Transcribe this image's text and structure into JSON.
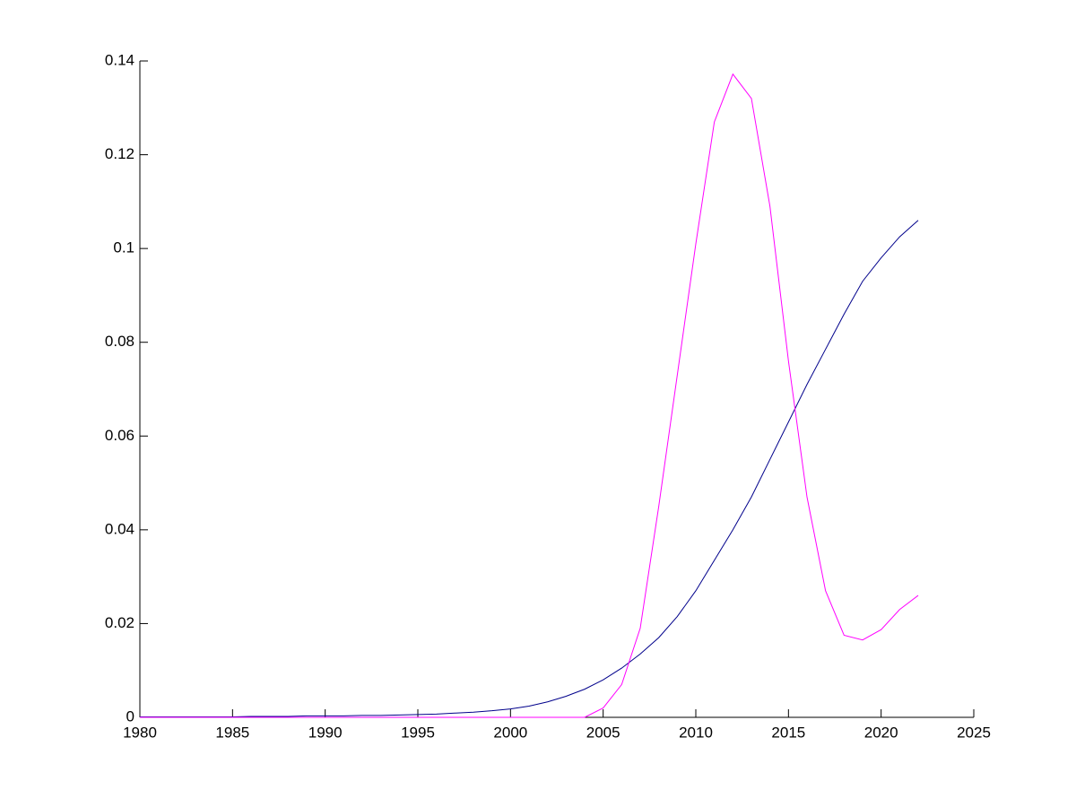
{
  "chart_data": {
    "type": "line",
    "x": [
      1980,
      1981,
      1982,
      1983,
      1984,
      1985,
      1986,
      1987,
      1988,
      1989,
      1990,
      1991,
      1992,
      1993,
      1994,
      1995,
      1996,
      1997,
      1998,
      1999,
      2000,
      2001,
      2002,
      2003,
      2004,
      2005,
      2006,
      2007,
      2008,
      2009,
      2010,
      2011,
      2012,
      2013,
      2014,
      2015,
      2016,
      2017,
      2018,
      2019,
      2020,
      2021,
      2022
    ],
    "series": [
      {
        "color": "#00008b",
        "values": [
          0.0001,
          0.0001,
          0.0001,
          0.0001,
          0.0001,
          0.0001,
          0.0002,
          0.0002,
          0.0002,
          0.0003,
          0.0003,
          0.0003,
          0.0004,
          0.0004,
          0.0005,
          0.0006,
          0.0007,
          0.0009,
          0.0011,
          0.0014,
          0.0018,
          0.0024,
          0.0033,
          0.0045,
          0.006,
          0.008,
          0.0105,
          0.0135,
          0.017,
          0.0215,
          0.027,
          0.0335,
          0.04,
          0.047,
          0.055,
          0.063,
          0.071,
          0.0785,
          0.086,
          0.093,
          0.098,
          0.1025,
          0.106
        ]
      },
      {
        "color": "#ff00ff",
        "values": [
          0,
          0,
          0,
          0,
          0,
          0,
          0,
          0,
          0,
          0,
          0,
          0,
          0,
          0,
          0,
          0,
          0,
          0,
          0,
          0,
          0,
          0,
          0,
          0,
          0,
          0.002,
          0.007,
          0.019,
          0.045,
          0.073,
          0.101,
          0.127,
          0.1372,
          0.132,
          0.109,
          0.076,
          0.047,
          0.027,
          0.0175,
          0.0165,
          0.0187,
          0.023,
          0.026
        ]
      }
    ],
    "xlim": [
      1980,
      2025
    ],
    "xticks": [
      1980,
      1985,
      1990,
      1995,
      2000,
      2005,
      2010,
      2015,
      2020,
      2025
    ],
    "ylim": [
      0,
      0.14
    ],
    "yticks": [
      0,
      0.02,
      0.04,
      0.06,
      0.08,
      0.1,
      0.12,
      0.14
    ]
  }
}
